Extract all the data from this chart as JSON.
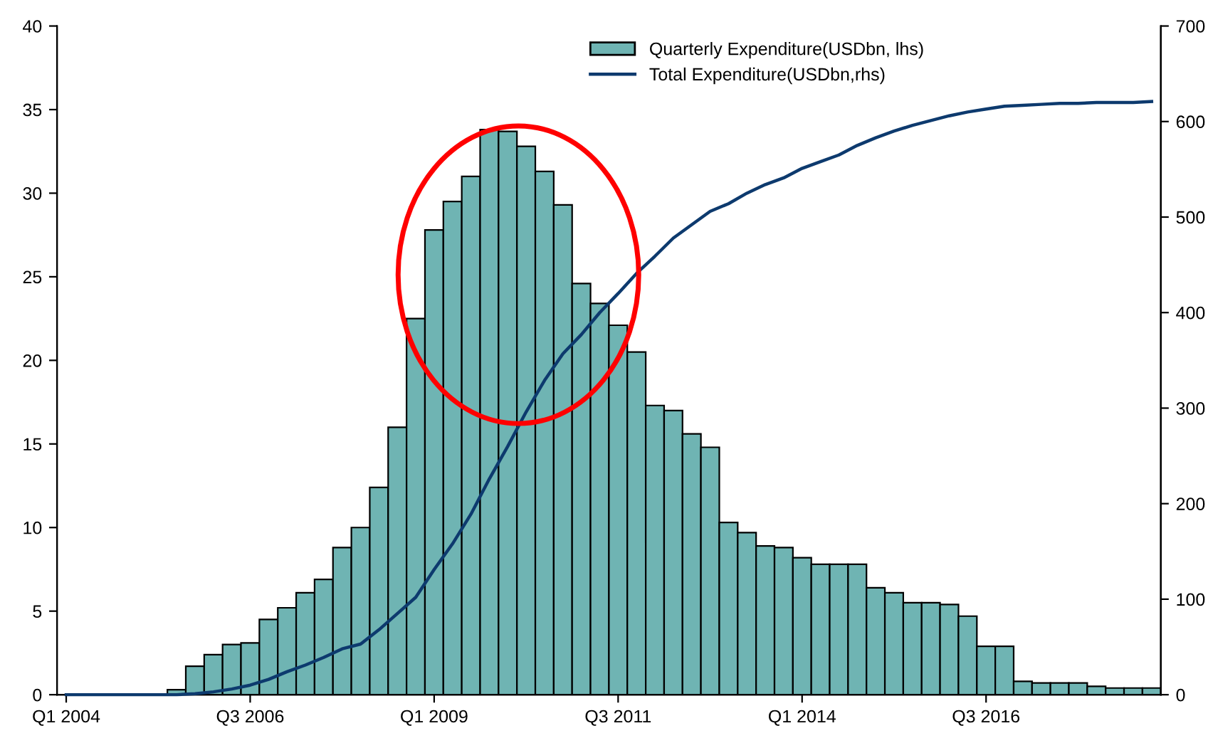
{
  "chart_data": {
    "type": "bar",
    "categories": [
      "Q1 2004",
      null,
      null,
      null,
      null,
      null,
      null,
      null,
      null,
      null,
      "Q3 2006",
      null,
      null,
      null,
      null,
      null,
      null,
      null,
      null,
      null,
      "Q1 2009",
      null,
      null,
      null,
      null,
      null,
      null,
      null,
      null,
      null,
      "Q3 2011",
      null,
      null,
      null,
      null,
      null,
      null,
      null,
      null,
      null,
      "Q1 2014",
      null,
      null,
      null,
      null,
      null,
      null,
      null,
      null,
      null,
      "Q3 2016",
      null,
      null,
      null,
      null,
      null,
      null,
      null,
      null,
      null
    ],
    "series": [
      {
        "name": "Quarterly Expenditure(USDbn, lhs)",
        "color": "#6fb4b3",
        "values": [
          0,
          0,
          0,
          0,
          0,
          0,
          0.3,
          1.7,
          2.4,
          3.0,
          3.1,
          4.5,
          5.2,
          6.1,
          6.9,
          8.8,
          10.0,
          12.4,
          16.0,
          22.5,
          27.8,
          29.5,
          31.0,
          33.8,
          33.7,
          32.8,
          31.3,
          29.3,
          24.6,
          23.4,
          22.1,
          20.5,
          17.3,
          17.0,
          15.6,
          14.8,
          10.3,
          9.7,
          8.9,
          8.8,
          8.2,
          7.8,
          7.8,
          7.8,
          6.4,
          6.1,
          5.5,
          5.5,
          5.4,
          4.7,
          2.9,
          2.9,
          0.8,
          0.7,
          0.7,
          0.7,
          0.5,
          0.4,
          0.4,
          0.4
        ]
      },
      {
        "name": "Total Expenditure(USDbn,rhs)",
        "type": "line",
        "axis": "y2",
        "color": "#0d3a6e",
        "values": [
          0,
          0,
          0,
          0,
          0,
          0,
          0,
          1,
          3,
          6,
          10,
          16,
          24,
          31,
          39,
          48,
          53,
          68,
          85,
          102,
          131,
          158,
          189,
          226,
          260,
          296,
          329,
          357,
          377,
          400,
          420,
          441,
          459,
          478,
          492,
          506,
          514,
          525,
          534,
          541,
          551,
          558,
          565,
          575,
          583,
          590,
          596,
          601,
          606,
          610,
          613,
          616,
          617,
          618,
          619,
          619,
          620,
          620,
          620,
          621
        ]
      }
    ],
    "ylim": [
      0,
      40
    ],
    "yticks": [
      0,
      5,
      10,
      15,
      20,
      25,
      30,
      35,
      40
    ],
    "y2lim": [
      0,
      700
    ],
    "y2ticks": [
      0,
      100,
      200,
      300,
      400,
      500,
      600,
      700
    ],
    "legend": "top right",
    "grid": false
  }
}
